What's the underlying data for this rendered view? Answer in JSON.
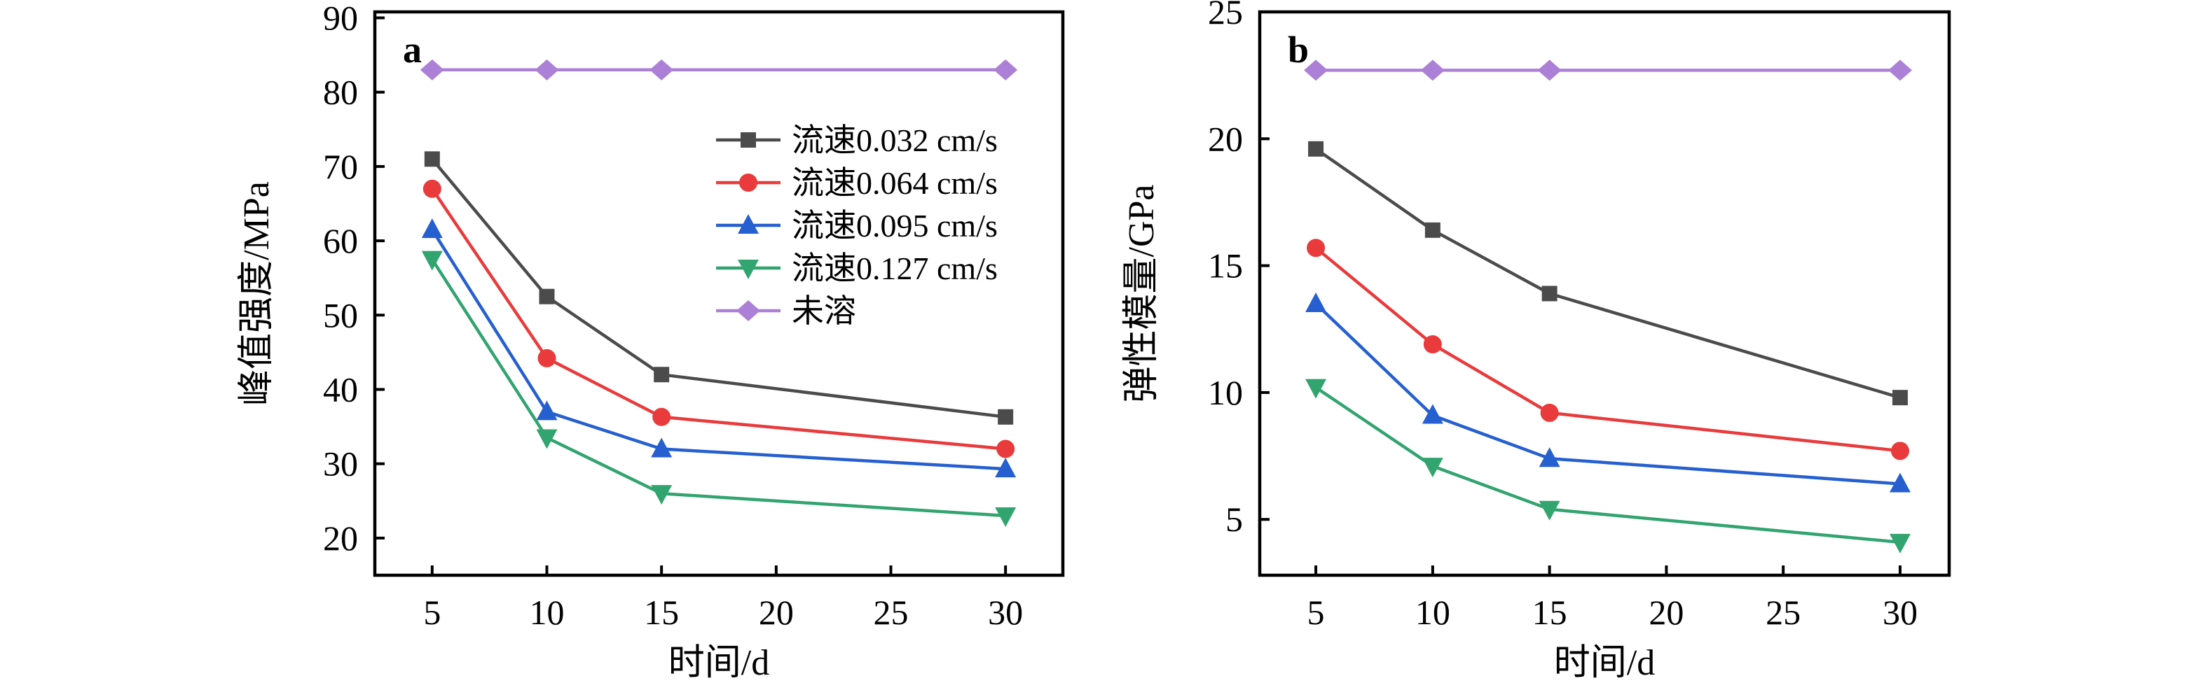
{
  "figure": {
    "background": "#ffffff",
    "axis_color": "#000000"
  },
  "chart_data": [
    {
      "type": "line",
      "panel_label": "a",
      "xlabel": "时间/d",
      "ylabel": "峰值强度/MPa",
      "x": [
        5,
        10,
        15,
        30
      ],
      "xticks": [
        5,
        10,
        15,
        20,
        25,
        30
      ],
      "xlim": [
        2.5,
        32.5
      ],
      "yticks": [
        20,
        30,
        40,
        50,
        60,
        70,
        80,
        90
      ],
      "ylim": [
        15,
        90.8
      ],
      "grid": false,
      "legend_visible": true,
      "legend_position": "upper-right-inside",
      "series": [
        {
          "name": "流速0.032 cm/s",
          "marker": "square",
          "color": "#4b4b4b",
          "values": [
            71,
            52.5,
            42,
            36.3
          ]
        },
        {
          "name": "流速0.064 cm/s",
          "marker": "circle",
          "color": "#e93a3c",
          "values": [
            67,
            44.2,
            36.3,
            32
          ]
        },
        {
          "name": "流速0.095 cm/s",
          "marker": "triangle-up",
          "color": "#255fd0",
          "values": [
            61.5,
            37,
            32,
            29.3
          ]
        },
        {
          "name": "流速0.127 cm/s",
          "marker": "triangle-down",
          "color": "#32a46f",
          "values": [
            57.5,
            33.5,
            26,
            23
          ]
        },
        {
          "name": "未溶",
          "marker": "diamond",
          "color": "#ad80d7",
          "values": [
            83,
            83,
            83,
            83
          ]
        }
      ]
    },
    {
      "type": "line",
      "panel_label": "b",
      "xlabel": "时间/d",
      "ylabel": "弹性模量/GPa",
      "x": [
        5,
        10,
        15,
        30
      ],
      "xticks": [
        5,
        10,
        15,
        20,
        25,
        30
      ],
      "xlim": [
        2.6,
        32.1
      ],
      "yticks": [
        5,
        10,
        15,
        20,
        25
      ],
      "ylim": [
        2.8,
        25
      ],
      "grid": false,
      "legend_visible": false,
      "legend_position": "none",
      "series": [
        {
          "name": "流速0.032 cm/s",
          "marker": "square",
          "color": "#4b4b4b",
          "values": [
            19.6,
            16.4,
            13.9,
            9.8
          ]
        },
        {
          "name": "流速0.064 cm/s",
          "marker": "circle",
          "color": "#e93a3c",
          "values": [
            15.7,
            11.9,
            9.2,
            7.7
          ]
        },
        {
          "name": "流速0.095 cm/s",
          "marker": "triangle-up",
          "color": "#255fd0",
          "values": [
            13.5,
            9.1,
            7.4,
            6.4
          ]
        },
        {
          "name": "流速0.127 cm/s",
          "marker": "triangle-down",
          "color": "#32a46f",
          "values": [
            10.2,
            7.1,
            5.4,
            4.1
          ]
        },
        {
          "name": "未溶",
          "marker": "diamond",
          "color": "#ad80d7",
          "values": [
            22.7,
            22.7,
            22.7,
            22.7
          ]
        }
      ]
    }
  ]
}
